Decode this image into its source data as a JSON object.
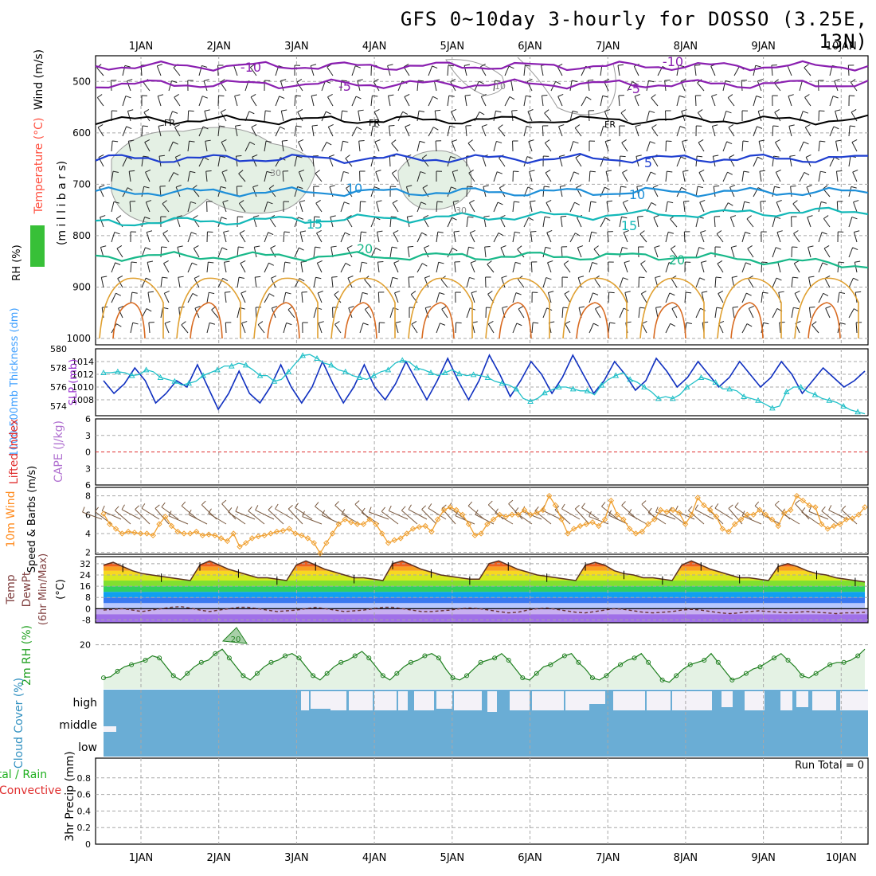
{
  "title": "GFS 0~10day 3-hourly for DOSSO (3.25E, 13N)",
  "chart_data": {
    "type": "meteogram",
    "location": "DOSSO",
    "x_ticks": [
      "1JAN",
      "2JAN",
      "3JAN",
      "4JAN",
      "5JAN",
      "6JAN",
      "7JAN",
      "8JAN",
      "9JAN",
      "10JAN"
    ],
    "panels": {
      "upper_air": {
        "ylabel_parts": [
          "RH (%)",
          "Temperature (°C)",
          "Wind (m/s)"
        ],
        "ylabel_right": "(m i l l i b a r s)",
        "ylim": [
          450,
          1000
        ],
        "yticks": [
          "500",
          "600",
          "700",
          "800",
          "900",
          "1000"
        ],
        "isotherms": [
          {
            "label": "-10",
            "p": 83,
            "color": "#8a1fb0"
          },
          {
            "label": "-5",
            "p": 505,
            "color": "#8a1fb0"
          },
          {
            "label": "FR",
            "p": 575,
            "color": "#000000"
          },
          {
            "label": "5",
            "p": 650,
            "color": "#1f3fd0"
          },
          {
            "label": "10",
            "p": 715,
            "color": "#1e8fd8"
          },
          {
            "label": "15",
            "p": 775,
            "color": "#12b8b8"
          },
          {
            "label": "20",
            "p": 840,
            "color": "#18b889"
          }
        ],
        "isotherm_labels": [
          "-10",
          "-5",
          "FR",
          "FR",
          "FR",
          "5",
          "10",
          "10",
          "15",
          "15",
          "20",
          "20",
          "-10",
          "-5",
          "30",
          "30",
          "10"
        ]
      },
      "slp_thickness": {
        "ylabel_left": "1000-500mb Thickness (dm)",
        "ylabel_right": "SLP (mb)",
        "thickness_ticks": [
          "574",
          "576",
          "578",
          "580"
        ],
        "slp_ticks": [
          "1008",
          "1010",
          "1012",
          "1014"
        ],
        "thickness_ylim": [
          573,
          580
        ],
        "slp_ylim": [
          1005.5,
          1016
        ],
        "slp_values": [
          1011,
          1009,
          1010.5,
          1013,
          1011,
          1007.5,
          1009,
          1011,
          1010,
          1013.5,
          1010,
          1006.5,
          1009,
          1012.5,
          1009,
          1007.5,
          1010,
          1013.5,
          1010,
          1007.5,
          1010,
          1014,
          1010.5,
          1007.5,
          1010,
          1013.5,
          1010,
          1008,
          1010.5,
          1014,
          1011,
          1008,
          1011,
          1014.5,
          1011,
          1008,
          1011,
          1015,
          1012,
          1008.5,
          1011,
          1014,
          1012,
          1009,
          1011.5,
          1015,
          1012,
          1009,
          1011,
          1014,
          1012,
          1009.5,
          1011,
          1014.5,
          1012.5,
          1010,
          1011.5,
          1014,
          1012,
          1010,
          1011.5,
          1014,
          1012,
          1010,
          1011.5,
          1014,
          1012,
          1009,
          1011,
          1013,
          1011.5,
          1010,
          1011,
          1012.5
        ],
        "thickness_values": [
          577.5,
          577.5,
          577.6,
          577.5,
          577.2,
          577.3,
          577.8,
          577.6,
          577.0,
          576.8,
          576.6,
          576.2,
          576.4,
          576.6,
          577.2,
          577.5,
          577.8,
          578.2,
          578.2,
          578.5,
          578.3,
          577.8,
          577.2,
          577.2,
          576.6,
          576.8,
          577.6,
          578.5,
          579.3,
          579.4,
          579.0,
          578.5,
          578.3,
          577.8,
          577.6,
          577.2,
          577.0,
          576.8,
          577.2,
          577.6,
          577.8,
          578.5,
          578.8,
          578.6,
          578.0,
          577.8,
          577.5,
          577.2,
          577.5,
          577.8,
          577.4,
          577.2,
          577.3,
          577.2,
          577.0,
          576.6,
          576.4,
          576.2,
          575.8,
          574.8,
          574.5,
          574.8,
          575.4,
          575.7,
          576.0,
          576.0,
          575.8,
          575.6,
          575.6,
          575.2,
          576.2,
          576.8,
          577.2,
          577.5,
          576.8,
          576.5,
          576.0,
          575.5,
          574.8,
          575.0,
          574.8,
          575.2,
          576.0,
          576.5,
          577.0,
          576.8,
          576.5,
          575.8,
          575.8,
          575.6,
          575.0,
          574.8,
          574.6,
          574.2,
          573.8,
          574.0,
          575.5,
          576.0,
          576.0,
          575.5,
          575.2,
          574.8,
          574.6,
          574.4,
          574.0,
          573.6,
          573.4,
          573.2
        ]
      },
      "li_cape": {
        "ylabel_left": "Lifted Index",
        "ylabel_right": "CAPE (J/kg)",
        "yticks": [
          "6",
          "3",
          "0",
          "3",
          "6"
        ]
      },
      "wind10m": {
        "ylabel_left": "10m Wind",
        "ylabel_right": "Speed & Barbs (m/s)",
        "ylim": [
          1.8,
          8.9
        ],
        "yticks": [
          "2",
          "4",
          "6",
          "8"
        ],
        "speed_values": [
          6.1,
          5.0,
          4.5,
          4.0,
          4.2,
          4.1,
          4.0,
          4.0,
          3.8,
          5.0,
          5.8,
          4.8,
          4.2,
          4.0,
          4.0,
          4.2,
          3.8,
          3.9,
          3.8,
          3.5,
          3.2,
          4.0,
          2.6,
          3.0,
          3.5,
          3.7,
          3.8,
          4.0,
          4.2,
          4.3,
          4.5,
          4.0,
          3.8,
          3.5,
          3.0,
          1.9,
          3.0,
          4.0,
          5.0,
          5.5,
          5.2,
          5.0,
          5.0,
          5.5,
          5.0,
          4.0,
          3.0,
          3.3,
          3.5,
          4.0,
          4.5,
          4.7,
          4.8,
          4.2,
          5.5,
          6.5,
          6.8,
          6.5,
          6.0,
          5.0,
          3.8,
          4.0,
          5.0,
          5.5,
          6.0,
          5.8,
          6.0,
          6.0,
          6.5,
          6.0,
          6.2,
          6.5,
          8.0,
          7.0,
          5.5,
          4.0,
          4.5,
          4.8,
          5.0,
          5.2,
          4.8,
          5.5,
          7.5,
          6.0,
          5.5,
          4.5,
          4.0,
          4.2,
          5.0,
          5.5,
          6.5,
          6.3,
          6.5,
          6.2,
          5.0,
          6.0,
          7.8,
          7.0,
          6.5,
          5.8,
          4.5,
          4.2,
          5.0,
          5.5,
          6.0,
          6.0,
          6.5,
          6.0,
          5.5,
          4.8,
          6.2,
          6.5,
          8.0,
          7.5,
          7.0,
          6.8,
          5.0,
          4.5,
          4.8,
          5.0,
          5.5,
          5.6,
          6.0,
          6.8
        ]
      },
      "temp2m": {
        "ylabel": "2m Temp 2m DewPt (6hr Min/Max) (°C)",
        "ylim": [
          -10,
          37
        ],
        "yticks": [
          "32",
          "24",
          "16",
          "8",
          "0",
          "-8"
        ],
        "temp_values": [
          31,
          33,
          30,
          27,
          25,
          24,
          23,
          22,
          21,
          20,
          31,
          34,
          31,
          28,
          26,
          24,
          22,
          22,
          21,
          20,
          31,
          34,
          31,
          28,
          26,
          24,
          22,
          22,
          21,
          20,
          32,
          34,
          31,
          28,
          26,
          24,
          23,
          22,
          21,
          21,
          32,
          34,
          31,
          28,
          26,
          24,
          23,
          22,
          21,
          20,
          31,
          33,
          31,
          27,
          25,
          24,
          22,
          22,
          21,
          20,
          31,
          34,
          31,
          28,
          26,
          24,
          22,
          22,
          21,
          20,
          30,
          32,
          30,
          27,
          25,
          24,
          22,
          21,
          20,
          19
        ],
        "dewpt_values": [
          -1,
          -0.5,
          0,
          -1,
          -2,
          -1,
          0,
          1,
          1.5,
          0.5,
          -1,
          -2,
          -1,
          0,
          1,
          1,
          0,
          -1,
          -2,
          -1.5,
          -1,
          0,
          1,
          0,
          -1,
          -2,
          -1.5,
          -1,
          0,
          1,
          1,
          0,
          -1,
          -2,
          -2,
          -1.5,
          -1,
          0,
          0.5,
          0,
          -1,
          -2,
          -3,
          -2.5,
          -1,
          0,
          0.5,
          -0.5,
          -1.5,
          -2.5,
          -3,
          -2,
          -1,
          0,
          -0.5,
          -1.5,
          -2.5,
          -3,
          -2.5,
          -2,
          -1,
          -0.5,
          -1,
          -2,
          -3,
          -3.5,
          -3,
          -2,
          -1.5,
          -2,
          -2.5,
          -3,
          -2.5,
          -2,
          -2.5,
          -3,
          -3.5,
          -3,
          -3,
          -2.5
        ]
      },
      "rh2m": {
        "ylabel": "2m RH (%)",
        "ylim": [
          0,
          30
        ],
        "yticks": [
          "20"
        ],
        "values": [
          5,
          5.5,
          8,
          10,
          11,
          12,
          13,
          15,
          14,
          10,
          6,
          4,
          7,
          10,
          12,
          13,
          16,
          18,
          14,
          10,
          6,
          4,
          7,
          10,
          12,
          13,
          15,
          16,
          14,
          10,
          6,
          4,
          7,
          10,
          12,
          13,
          15,
          17,
          14,
          10,
          6,
          4,
          7,
          10,
          12,
          13,
          15,
          16,
          14,
          9,
          5,
          4,
          6,
          9,
          12,
          13,
          14,
          16,
          13,
          9,
          5,
          4,
          7,
          10,
          11,
          13,
          15,
          16,
          12,
          9,
          5,
          4,
          6,
          9,
          11,
          13,
          14,
          16,
          12,
          8,
          4,
          3,
          6,
          9,
          11,
          12,
          13,
          16,
          12,
          8,
          4,
          5,
          7,
          9,
          10,
          12,
          14,
          16,
          13,
          10,
          6,
          5,
          7,
          9,
          11,
          12,
          12,
          13,
          15,
          18
        ],
        "peak_label": "20"
      },
      "cloud": {
        "ylabel": "Cloud Cover (%)",
        "levels": [
          "high",
          "middle",
          "low"
        ]
      },
      "precip": {
        "ylabel_parts": [
          "Total / Rain",
          "Convective",
          "3hr Precip (mm)"
        ],
        "ylim": [
          0,
          1
        ],
        "yticks": [
          "0",
          "0.2",
          "0.4",
          "0.6",
          "0.8"
        ],
        "run_total_label": "Run Total = 0",
        "values": []
      }
    }
  }
}
